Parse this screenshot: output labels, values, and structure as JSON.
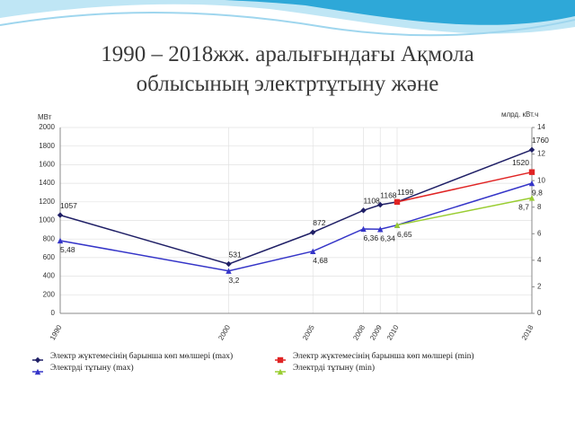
{
  "chart_data": {
    "type": "line",
    "title": "1990 – 2018жж. аралығындағы Ақмола облысының электртұтыну және",
    "ylabel": "МВт",
    "y2label": "млрд. кВт.ч",
    "x": [
      1990,
      2000,
      2005,
      2008,
      2009,
      2010,
      2018
    ],
    "xlim": [
      1990,
      2018
    ],
    "ylim": [
      0,
      2000
    ],
    "yticks": [
      0,
      200,
      400,
      600,
      800,
      1000,
      1200,
      1400,
      1600,
      1800,
      2000
    ],
    "y2lim": [
      0,
      14
    ],
    "y2ticks": [
      0,
      2,
      4,
      6,
      8,
      10,
      12,
      14
    ],
    "grid": true,
    "legend": "bottom",
    "series": [
      {
        "name": "Электр жүктемесінің барынша көп мөлшері (max)",
        "color": "#1f1f66",
        "values": [
          1057,
          531,
          872,
          1108,
          1168,
          1199,
          1760
        ],
        "value_labels": [
          "1057",
          "531",
          "872",
          "1108",
          "1168",
          "1199",
          "1760"
        ]
      },
      {
        "name": "Электр жүктемесінің барынша көп мөлшері (min)",
        "color": "#e02424",
        "values": [
          null,
          null,
          null,
          null,
          null,
          1199,
          1520
        ],
        "value_labels": [
          null,
          null,
          null,
          null,
          null,
          null,
          "1520"
        ]
      },
      {
        "name": "Электрді тұтыну (max)",
        "color": "#3535c8",
        "axis": "y2",
        "values": [
          5.48,
          3.2,
          4.68,
          6.36,
          6.34,
          6.65,
          9.8
        ],
        "value_labels": [
          "5,48",
          "3,2",
          "4,68",
          "6,36",
          "6,34",
          "6,65",
          "9,8"
        ]
      },
      {
        "name": "Электрді тұтыну (min)",
        "color": "#9acd32",
        "axis": "y2",
        "values": [
          null,
          null,
          null,
          null,
          null,
          6.65,
          8.7
        ],
        "value_labels": [
          null,
          null,
          null,
          null,
          null,
          null,
          "8,7"
        ]
      }
    ]
  }
}
